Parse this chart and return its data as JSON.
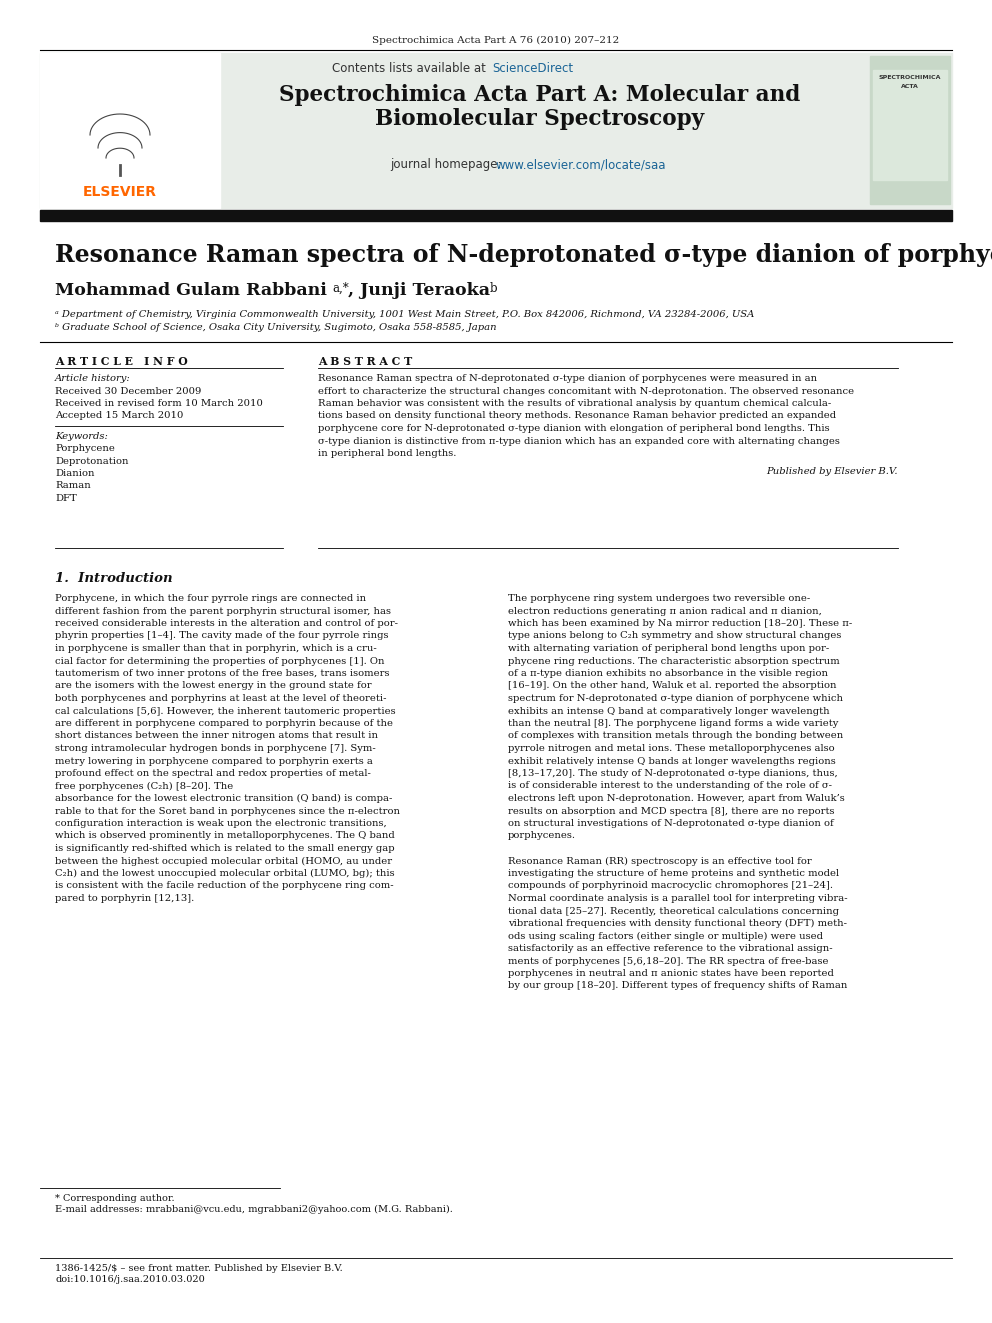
{
  "page_bg": "#ffffff",
  "top_journal_ref": "Spectrochimica Acta Part A 76 (2010) 207–212",
  "header_bg": "#e8ede8",
  "contents_text": "Contents lists available at",
  "sciencedirect_text": "ScienceDirect",
  "sciencedirect_color": "#1a6496",
  "journal_title_line1": "Spectrochimica Acta Part A: Molecular and",
  "journal_title_line2": "Biomolecular Spectroscopy",
  "journal_homepage_text": "journal homepage: ",
  "journal_homepage_url": "www.elsevier.com/locate/saa",
  "journal_homepage_color": "#1a6496",
  "elsevier_color": "#ff6600",
  "article_title": "Resonance Raman spectra of N-deprotonated σ-type dianion of porphycenes",
  "affil_a": "ᵃ Department of Chemistry, Virginia Commonwealth University, 1001 West Main Street, P.O. Box 842006, Richmond, VA 23284-2006, USA",
  "affil_b": "ᵇ Graduate School of Science, Osaka City University, Sugimoto, Osaka 558-8585, Japan",
  "article_info_header": "A R T I C L E   I N F O",
  "article_history_label": "Article history:",
  "received": "Received 30 December 2009",
  "received_revised": "Received in revised form 10 March 2010",
  "accepted": "Accepted 15 March 2010",
  "keywords_label": "Keywords:",
  "keywords": [
    "Porphycene",
    "Deprotonation",
    "Dianion",
    "Raman",
    "DFT"
  ],
  "abstract_header": "A B S T R A C T",
  "published_by": "Published by Elsevier B.V.",
  "intro_heading": "1.  Introduction",
  "footnote_corr": "* Corresponding author.",
  "footnote_email": "E-mail addresses: mrabbani@vcu.edu, mgrabbani2@yahoo.com (M.G. Rabbani).",
  "bottom_issn": "1386-1425/$ – see front matter. Published by Elsevier B.V.",
  "bottom_doi": "doi:10.1016/j.saa.2010.03.020",
  "abstract_lines": [
    "Resonance Raman spectra of N-deprotonated σ-type dianion of porphycenes were measured in an",
    "effort to characterize the structural changes concomitant with N-deprotonation. The observed resonance",
    "Raman behavior was consistent with the results of vibrational analysis by quantum chemical calcula-",
    "tions based on density functional theory methods. Resonance Raman behavior predicted an expanded",
    "porphycene core for N-deprotonated σ-type dianion with elongation of peripheral bond lengths. This",
    "σ-type dianion is distinctive from π-type dianion which has an expanded core with alternating changes",
    "in peripheral bond lengths."
  ],
  "intro_col1_lines": [
    "Porphycene, in which the four pyrrole rings are connected in",
    "different fashion from the parent porphyrin structural isomer, has",
    "received considerable interests in the alteration and control of por-",
    "phyrin properties [1–4]. The cavity made of the four pyrrole rings",
    "in porphycene is smaller than that in porphyrin, which is a cru-",
    "cial factor for determining the properties of porphycenes [1]. On",
    "tautomerism of two inner protons of the free bases, trans isomers",
    "are the isomers with the lowest energy in the ground state for",
    "both porphycenes and porphyrins at least at the level of theoreti-",
    "cal calculations [5,6]. However, the inherent tautomeric properties",
    "are different in porphycene compared to porphyrin because of the",
    "short distances between the inner nitrogen atoms that result in",
    "strong intramolecular hydrogen bonds in porphycene [7]. Sym-",
    "metry lowering in porphycene compared to porphyrin exerts a",
    "profound effect on the spectral and redox properties of metal-",
    "free porphycenes (C₂h) [8–20]. The",
    "absorbance for the lowest electronic transition (Q band) is compa-",
    "rable to that for the Soret band in porphycenes since the π-electron",
    "configuration interaction is weak upon the electronic transitions,",
    "which is observed prominently in metalloporphycenes. The Q band",
    "is significantly red-shifted which is related to the small energy gap",
    "between the highest occupied molecular orbital (HOMO, au under",
    "C₂h) and the lowest unoccupied molecular orbital (LUMO, bg); this",
    "is consistent with the facile reduction of the porphycene ring com-",
    "pared to porphyrin [12,13]."
  ],
  "intro_col2_lines": [
    "The porphycene ring system undergoes two reversible one-",
    "electron reductions generating π anion radical and π dianion,",
    "which has been examined by Na mirror reduction [18–20]. These π-",
    "type anions belong to C₂h symmetry and show structural changes",
    "with alternating variation of peripheral bond lengths upon por-",
    "phycene ring reductions. The characteristic absorption spectrum",
    "of a π-type dianion exhibits no absorbance in the visible region",
    "[16–19]. On the other hand, Waluk et al. reported the absorption",
    "spectrum for N-deprotonated σ-type dianion of porphycene which",
    "exhibits an intense Q band at comparatively longer wavelength",
    "than the neutral [8]. The porphycene ligand forms a wide variety",
    "of complexes with transition metals through the bonding between",
    "pyrrole nitrogen and metal ions. These metalloporphycenes also",
    "exhibit relatively intense Q bands at longer wavelengths regions",
    "[8,13–17,20]. The study of N-deprotonated σ-type dianions, thus,",
    "is of considerable interest to the understanding of the role of σ-",
    "electrons left upon N-deprotonation. However, apart from Waluk’s",
    "results on absorption and MCD spectra [8], there are no reports",
    "on structural investigations of N-deprotonated σ-type dianion of",
    "porphycenes.",
    "",
    "Resonance Raman (RR) spectroscopy is an effective tool for",
    "investigating the structure of heme proteins and synthetic model",
    "compounds of porphyrinoid macrocyclic chromophores [21–24].",
    "Normal coordinate analysis is a parallel tool for interpreting vibra-",
    "tional data [25–27]. Recently, theoretical calculations concerning",
    "vibrational frequencies with density functional theory (DFT) meth-",
    "ods using scaling factors (either single or multiple) were used",
    "satisfactorily as an effective reference to the vibrational assign-",
    "ments of porphycenes [5,6,18–20]. The RR spectra of free-base",
    "porphycenes in neutral and π anionic states have been reported",
    "by our group [18–20]. Different types of frequency shifts of Raman"
  ]
}
